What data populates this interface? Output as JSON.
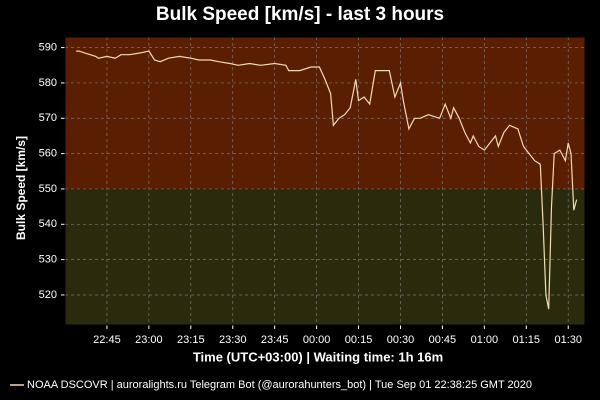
{
  "chart_data": {
    "type": "line",
    "title": "Bulk Speed [km/s] - last 3 hours",
    "y_label": "Bulk Speed [km/s]",
    "x_label": "Time (UTC+03:00) | Waiting time: 1h 16m",
    "footer": [
      "| auroralights.ru Telegram Bot (@aurorahunters_bot) | Tue Sep 01 22:38:25 GMT 2020"
    ],
    "x": [
      "22:34",
      "22:35",
      "22:37",
      "22:39",
      "22:41",
      "22:42",
      "22:45",
      "22:48",
      "22:50",
      "22:53",
      "22:57",
      "23:00",
      "23:02",
      "23:04",
      "23:07",
      "23:11",
      "23:15",
      "23:18",
      "23:22",
      "23:25",
      "23:29",
      "23:32",
      "23:36",
      "23:40",
      "23:45",
      "23:49",
      "23:50",
      "23:54",
      "23:58",
      "00:01",
      "00:03",
      "00:05",
      "00:06",
      "00:08",
      "00:10",
      "00:12",
      "00:14",
      "00:15",
      "00:17",
      "00:19",
      "00:21",
      "00:26",
      "00:28",
      "00:30",
      "00:31",
      "00:33",
      "00:35",
      "00:37",
      "00:40",
      "00:44",
      "00:46",
      "00:48",
      "00:49",
      "00:51",
      "00:53",
      "00:55",
      "00:56",
      "00:58",
      "01:00",
      "01:02",
      "01:04",
      "01:05",
      "01:07",
      "01:09",
      "01:12",
      "01:14",
      "01:16",
      "01:18",
      "01:20",
      "01:21",
      "01:22",
      "01:23",
      "01:24",
      "01:25",
      "01:27",
      "01:29",
      "01:30",
      "01:31",
      "01:32",
      "01:33"
    ],
    "series": [
      {
        "name": "NOAA DSCOVR",
        "color": "#f3dcb0",
        "values": [
          589,
          589,
          588.5,
          588,
          587.5,
          587,
          587.5,
          587,
          588,
          588,
          588.5,
          589,
          586.5,
          586,
          587,
          587.5,
          587,
          586.5,
          586.5,
          586,
          585.5,
          585,
          585.5,
          585,
          585.5,
          585,
          583.5,
          583.5,
          584.5,
          584.5,
          581,
          577,
          568,
          570,
          571,
          573,
          581,
          575,
          576,
          574,
          583.5,
          583.5,
          576,
          580,
          575,
          567,
          570,
          570,
          571,
          570,
          574,
          570,
          573,
          570,
          566,
          563,
          565,
          562,
          561,
          563,
          565,
          562,
          566,
          568,
          567,
          562,
          560,
          558,
          557,
          540,
          520,
          516,
          545,
          560,
          561,
          558,
          563,
          560,
          544,
          547
        ]
      }
    ],
    "xlim": [
      "22:30",
      "01:36"
    ],
    "xticks": [
      "22:45",
      "23:00",
      "23:15",
      "23:30",
      "23:45",
      "00:00",
      "00:15",
      "00:30",
      "00:45",
      "01:00",
      "01:15",
      "01:30"
    ],
    "ylim": [
      511.5,
      593
    ],
    "yticks": [
      520,
      530,
      540,
      550,
      560,
      570,
      580,
      590
    ],
    "grid": true,
    "threshold": 550,
    "above_color": "#5a1e02",
    "below_color": "#2a2a0c"
  }
}
